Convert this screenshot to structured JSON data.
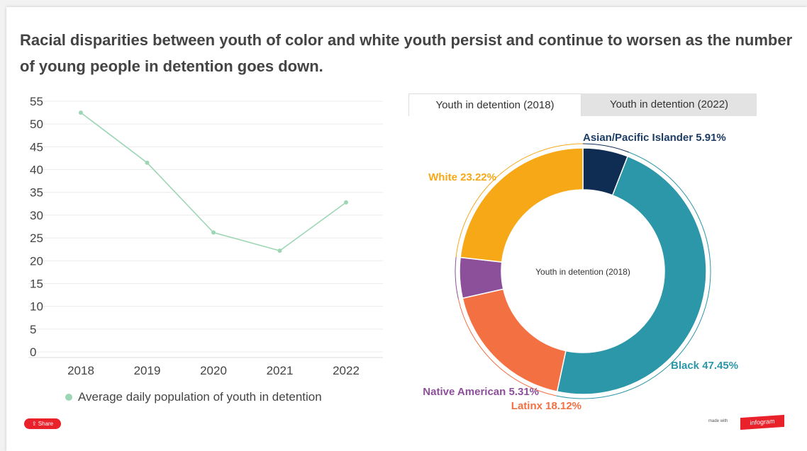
{
  "title": "Racial disparities between youth of color and white youth persist and continue to worsen as the number of young people in detention goes down.",
  "line_chart": {
    "legend_label": "Average daily population of youth in detention",
    "color": "#9ed6b5"
  },
  "tabs": [
    {
      "label": "Youth in detention (2018)",
      "active": true
    },
    {
      "label": "Youth in detention (2022)",
      "active": false
    }
  ],
  "donut": {
    "center_label": "Youth in detention (2018)"
  },
  "footer": {
    "share_label": "Share",
    "made_with": "made with",
    "brand": "infogram"
  },
  "chart_data": [
    {
      "type": "line",
      "x": [
        "2018",
        "2019",
        "2020",
        "2021",
        "2022"
      ],
      "series": [
        {
          "name": "Average daily population of youth in detention",
          "values": [
            52.5,
            41.5,
            26.2,
            22.2,
            32.8
          ]
        }
      ],
      "yticks": [
        0,
        5,
        10,
        15,
        20,
        25,
        30,
        35,
        40,
        45,
        50,
        55
      ],
      "ylim": [
        0,
        55
      ],
      "grid": true,
      "legend": "bottom-left"
    },
    {
      "type": "pie",
      "title": "Youth in detention (2018)",
      "slices": [
        {
          "label": "Asian/Pacific Islander",
          "value": 5.91,
          "display": "5.91%",
          "color": "#0f2d52"
        },
        {
          "label": "Black",
          "value": 47.45,
          "display": "47.45%",
          "color": "#2b97a8"
        },
        {
          "label": "Latinx",
          "value": 18.12,
          "display": "18.12%",
          "color": "#f37042"
        },
        {
          "label": "Native American",
          "value": 5.31,
          "display": "5.31%",
          "color": "#8c4f9a"
        },
        {
          "label": "White",
          "value": 23.22,
          "display": "23.22%",
          "color": "#f6a816"
        }
      ]
    }
  ]
}
